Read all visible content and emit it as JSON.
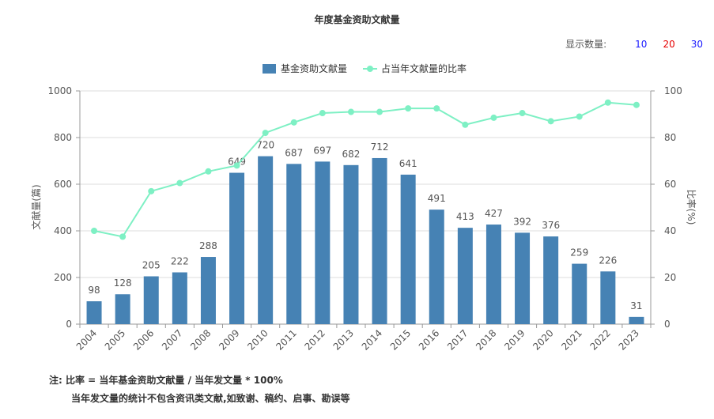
{
  "page": {
    "title": "年度基金资助文献量",
    "display_count": {
      "label": "显示数量:",
      "options": [
        {
          "label": "10",
          "color": "#1a1aff"
        },
        {
          "label": "20",
          "color": "#e60000"
        },
        {
          "label": "30",
          "color": "#1a1aff"
        }
      ]
    },
    "notes": {
      "line1": "注:   比率 = 当年基金资助文献量 / 当年发文量 * 100%",
      "line2": "当年发文量的统计不包含资讯类文献,如致谢、稿约、启事、勘误等"
    }
  },
  "chart_data": {
    "type": "bar",
    "categories": [
      "2004",
      "2005",
      "2006",
      "2007",
      "2008",
      "2009",
      "2010",
      "2011",
      "2012",
      "2013",
      "2014",
      "2015",
      "2016",
      "2017",
      "2018",
      "2019",
      "2020",
      "2021",
      "2022",
      "2023"
    ],
    "series": [
      {
        "name": "基金资助文献量",
        "type": "bar",
        "axis": "left",
        "color": "#4682b4",
        "values": [
          98,
          128,
          205,
          222,
          288,
          649,
          720,
          687,
          697,
          682,
          712,
          641,
          491,
          413,
          427,
          392,
          376,
          259,
          226,
          31
        ]
      },
      {
        "name": "占当年文献量的比率",
        "type": "line",
        "axis": "right",
        "color": "#7ef0c4",
        "values": [
          40,
          37.5,
          57,
          60.5,
          65.5,
          68,
          82,
          86.5,
          90.5,
          91,
          91,
          92.5,
          92.5,
          85.5,
          88.5,
          90.5,
          87,
          89,
          95,
          94
        ]
      }
    ],
    "ylabel": "文献量(篇)",
    "ylabel_right": "比率(%)",
    "ylim": [
      0,
      1000
    ],
    "yticks": [
      0,
      200,
      400,
      600,
      800,
      1000
    ],
    "ylim_right": [
      0,
      100
    ],
    "yticks_right": [
      0,
      20,
      40,
      60,
      80,
      100
    ],
    "grid": true,
    "legend_position": "top-center",
    "bar_labels": true
  }
}
